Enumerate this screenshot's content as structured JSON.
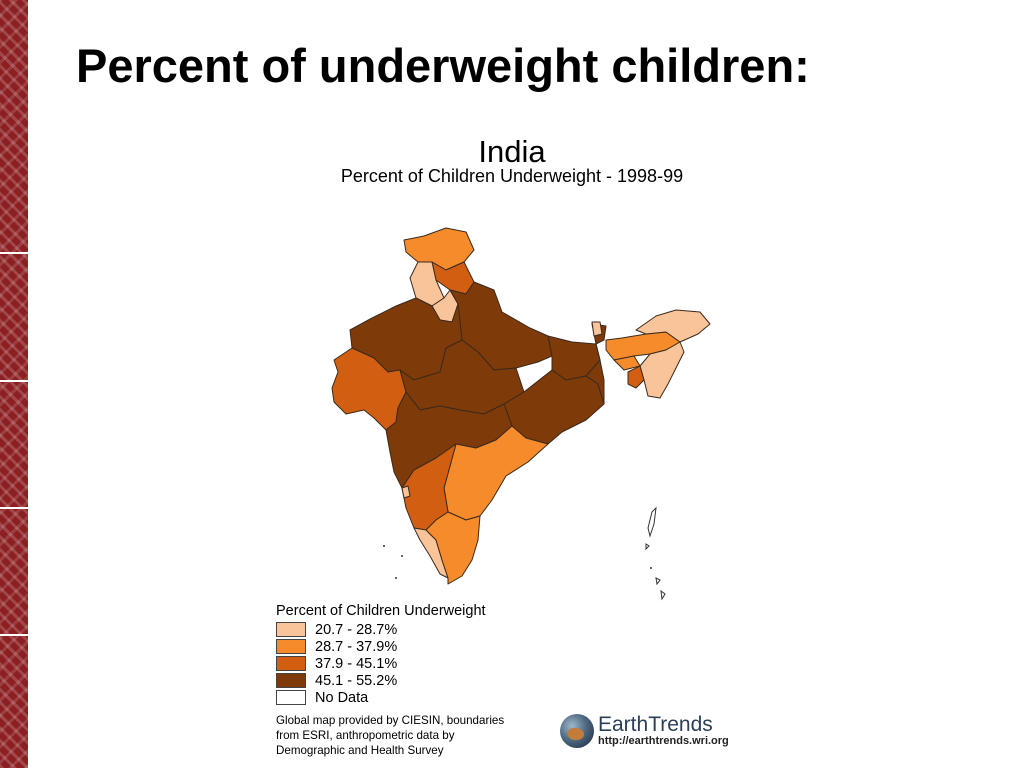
{
  "slide": {
    "title": "Percent of underweight children:"
  },
  "map": {
    "title": "India",
    "subtitle": "Percent of Children Underweight - 1998-99",
    "colors": {
      "c1": "#f9c49a",
      "c2": "#f68b2c",
      "c3": "#d25f11",
      "c4": "#7e3a08",
      "nodata": "#ffffff",
      "border": "#3a2a1e"
    }
  },
  "legend": {
    "title": "Percent of Children Underweight",
    "items": [
      {
        "label": "20.7 - 28.7%",
        "color": "#f9c49a"
      },
      {
        "label": "28.7 - 37.9%",
        "color": "#f68b2c"
      },
      {
        "label": "37.9 - 45.1%",
        "color": "#d25f11"
      },
      {
        "label": "45.1 - 55.2%",
        "color": "#7e3a08"
      },
      {
        "label": "No Data",
        "color": "#ffffff"
      }
    ]
  },
  "credit": {
    "line1": "Global map provided by CIESIN, boundaries",
    "line2": "from ESRI, anthropometric data by",
    "line3": "Demographic and Health Survey"
  },
  "logo": {
    "name": "EarthTrends",
    "url": "http://earthtrends.wri.org"
  }
}
